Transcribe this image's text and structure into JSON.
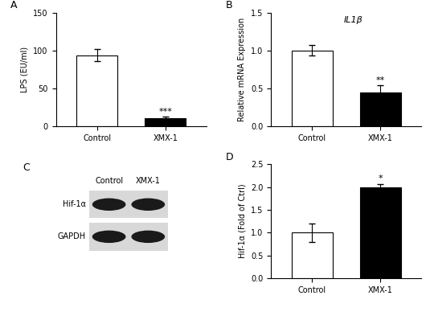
{
  "chart_data": [
    {
      "type": "bar",
      "title": "A",
      "categories": [
        "Control",
        "XMX-1"
      ],
      "values": [
        94,
        11
      ],
      "errors": [
        8,
        1.5
      ],
      "significance": [
        null,
        "***"
      ],
      "colors": [
        "#ffffff",
        "#000000"
      ],
      "y_label": "LPS (EU/ml)",
      "ylim": [
        0,
        150
      ],
      "yticks": [
        0,
        50,
        100,
        150
      ]
    },
    {
      "type": "bar",
      "title": "B",
      "annotations": [
        "IL1β"
      ],
      "categories": [
        "Control",
        "XMX-1"
      ],
      "values": [
        1.0,
        0.45
      ],
      "errors": [
        0.07,
        0.09
      ],
      "significance": [
        null,
        "**"
      ],
      "colors": [
        "#ffffff",
        "#000000"
      ],
      "y_label": "Relative mRNA Expression",
      "ylim": [
        0,
        1.5
      ],
      "yticks": [
        {
          "value": 0,
          "label": "0.0"
        },
        {
          "value": 0.5,
          "label": "0.5"
        },
        {
          "value": 1.0,
          "label": "1.0"
        },
        {
          "value": 1.5,
          "label": "1.5"
        }
      ]
    },
    {
      "type": "blot",
      "title": "C",
      "lanes": [
        "Control",
        "XMX-1"
      ],
      "rows": [
        "Hif-1α",
        "GAPDH"
      ]
    },
    {
      "type": "bar",
      "title": "D",
      "categories": [
        "Control",
        "XMX-1"
      ],
      "values": [
        1.0,
        2.0
      ],
      "errors": [
        0.2,
        0.07
      ],
      "significance": [
        null,
        "*"
      ],
      "colors": [
        "#ffffff",
        "#000000"
      ],
      "y_label": "Hif-1α (Fold of Ctrl)",
      "ylim": [
        0,
        2.5
      ],
      "yticks": [
        {
          "value": 0,
          "label": "0.0"
        },
        {
          "value": 0.5,
          "label": "0.5"
        },
        {
          "value": 1.0,
          "label": "1.0"
        },
        {
          "value": 1.5,
          "label": "1.5"
        },
        {
          "value": 2.0,
          "label": "2.0"
        },
        {
          "value": 2.5,
          "label": "2.5"
        }
      ]
    }
  ]
}
